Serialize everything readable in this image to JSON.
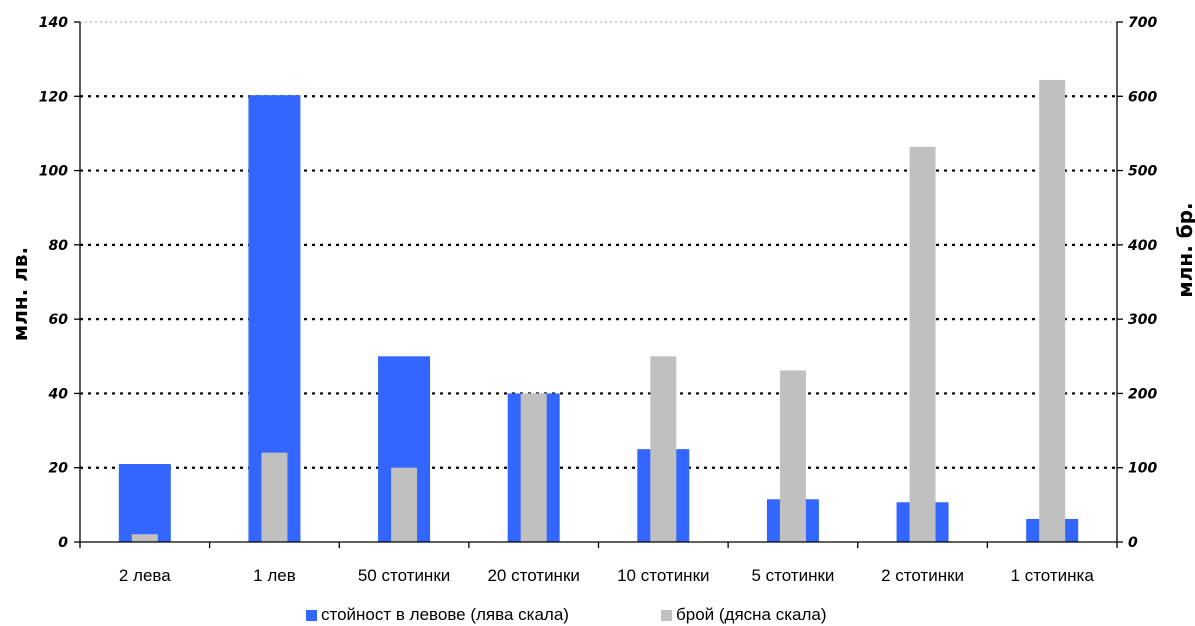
{
  "chart_data": {
    "type": "bar",
    "categories": [
      "2 лева",
      "1 лев",
      "50 стотинки",
      "20 стотинки",
      "10 стотинки",
      "5 стотинки",
      "2 стотинки",
      "1 стотинка"
    ],
    "series": [
      {
        "name": "стойност в левове (лява скала)",
        "axis": "left",
        "color": "#3366ff",
        "values": [
          21,
          120.3,
          50,
          40,
          25,
          11.5,
          10.7,
          6.2
        ]
      },
      {
        "name": "брой (дясна скала)",
        "axis": "right",
        "color": "#c0c0c0",
        "values": [
          10.5,
          120.3,
          100,
          200,
          250,
          231,
          532,
          622
        ]
      }
    ],
    "ylabel_left": "млн. лв.",
    "ylabel_right": "млн. бр.",
    "ylim_left": [
      0,
      140
    ],
    "ylim_right": [
      0,
      700
    ],
    "yticks_left": [
      "0",
      "20",
      "40",
      "60",
      "80",
      "100",
      "120",
      "140"
    ],
    "yticks_right": [
      "0",
      "100",
      "200",
      "300",
      "400",
      "500",
      "600",
      "700"
    ],
    "grid": "dotted horizontal",
    "legend": "bottom"
  }
}
